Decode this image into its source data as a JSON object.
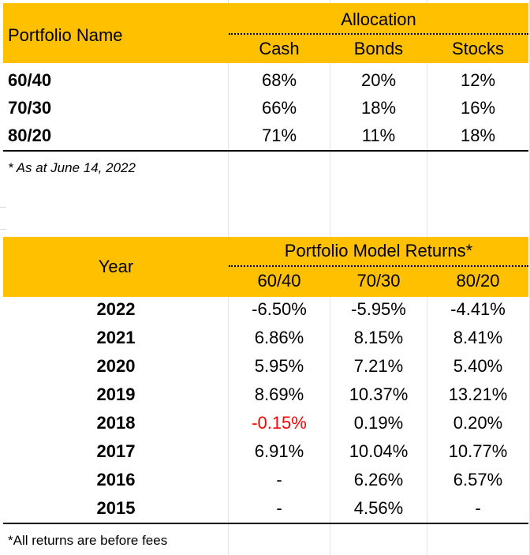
{
  "allocation_table": {
    "header": {
      "name_col": "Portfolio Name",
      "group": "Allocation",
      "columns": [
        "Cash",
        "Bonds",
        "Stocks"
      ]
    },
    "rows": [
      {
        "name": "60/40",
        "values": [
          "68%",
          "20%",
          "12%"
        ]
      },
      {
        "name": "70/30",
        "values": [
          "66%",
          "18%",
          "16%"
        ]
      },
      {
        "name": "80/20",
        "values": [
          "71%",
          "11%",
          "18%"
        ]
      }
    ],
    "footnote": "* As at June 14, 2022"
  },
  "returns_table": {
    "header": {
      "year_col": "Year",
      "group": "Portfolio Model Returns*",
      "columns": [
        "60/40",
        "70/30",
        "80/20"
      ]
    },
    "rows": [
      {
        "year": "2022",
        "values": [
          "-6.50%",
          "-5.95%",
          "-4.41%"
        ]
      },
      {
        "year": "2021",
        "values": [
          "6.86%",
          "8.15%",
          "8.41%"
        ]
      },
      {
        "year": "2020",
        "values": [
          "5.95%",
          "7.21%",
          "5.40%"
        ]
      },
      {
        "year": "2019",
        "values": [
          "8.69%",
          "10.37%",
          "13.21%"
        ]
      },
      {
        "year": "2018",
        "values": [
          "-0.15%",
          "0.19%",
          "0.20%"
        ]
      },
      {
        "year": "2017",
        "values": [
          "6.91%",
          "10.04%",
          "10.77%"
        ]
      },
      {
        "year": "2016",
        "values": [
          "-",
          "6.26%",
          "6.57%"
        ]
      },
      {
        "year": "2015",
        "values": [
          "-",
          "4.56%",
          "-"
        ]
      }
    ],
    "negative_color": "#ff0000",
    "highlight_color": "#FFC000",
    "footnote": "*All returns are before fees"
  }
}
